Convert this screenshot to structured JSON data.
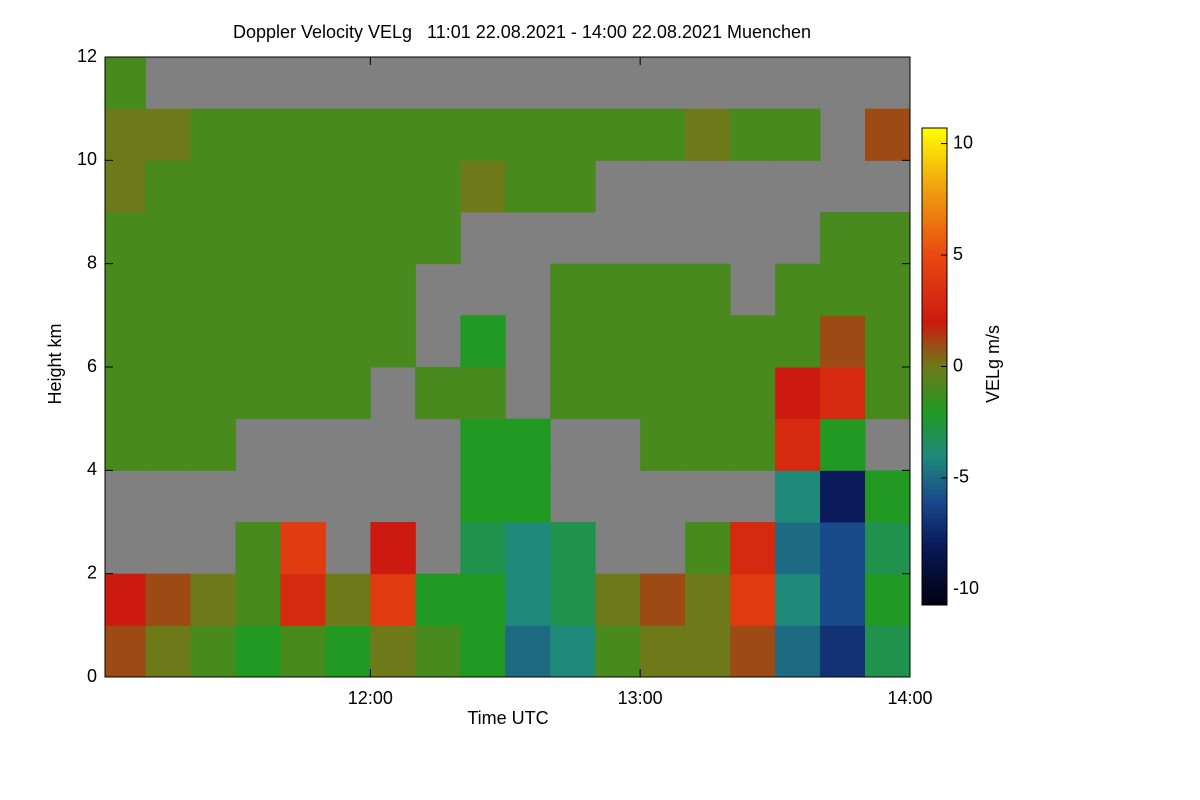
{
  "chart_data": {
    "type": "heatmap",
    "title": "Doppler Velocity VELg   11:01 22.08.2021 - 14:00 22.08.2021 Muenchen",
    "xlabel": "Time UTC",
    "ylabel": "Height km",
    "colorbar_label": "VELg m/s",
    "xlim": [
      661,
      840
    ],
    "xticks": [
      {
        "value": 720,
        "label": "12:00"
      },
      {
        "value": 780,
        "label": "13:00"
      },
      {
        "value": 840,
        "label": "14:00"
      }
    ],
    "ylim": [
      0,
      12
    ],
    "yticks": [
      0,
      2,
      4,
      6,
      8,
      10,
      12
    ],
    "clim": [
      -10.7,
      10.7
    ],
    "cticks": [
      10,
      5,
      0,
      -5,
      -10
    ],
    "nodata_color": "#808080",
    "colorscale": [
      [
        -10.7,
        "#000010"
      ],
      [
        -8,
        "#0a1a5a"
      ],
      [
        -6,
        "#1a4a8c"
      ],
      [
        -4,
        "#1f8a7a"
      ],
      [
        -2,
        "#229922"
      ],
      [
        0,
        "#6e7a1a"
      ],
      [
        2,
        "#cc1a10"
      ],
      [
        5,
        "#e84a10"
      ],
      [
        8,
        "#f0a010"
      ],
      [
        10.7,
        "#ffff00"
      ]
    ],
    "x_edges": [
      661,
      670,
      680,
      690,
      700,
      710,
      720,
      730,
      740,
      750,
      760,
      770,
      780,
      790,
      800,
      810,
      820,
      830,
      840
    ],
    "y_edges": [
      0,
      1,
      2,
      3,
      4,
      5,
      6,
      7,
      8,
      9,
      10,
      11,
      12
    ],
    "z": [
      [
        1,
        0,
        -1,
        -2,
        -1,
        -2,
        0,
        -1,
        -2,
        -5,
        -4,
        -1,
        0,
        0,
        1,
        -5,
        -7,
        -3
      ],
      [
        2,
        1,
        0,
        -1,
        3,
        0,
        4,
        -2,
        -2,
        -4,
        -3,
        0,
        1,
        0,
        4,
        -4,
        -6,
        -2
      ],
      [
        null,
        null,
        null,
        -1,
        4,
        null,
        2,
        null,
        -3,
        -4,
        -3,
        null,
        null,
        -1,
        3,
        -5,
        -6,
        -3
      ],
      [
        null,
        null,
        null,
        null,
        null,
        null,
        null,
        null,
        -2,
        -2,
        null,
        null,
        null,
        null,
        null,
        -4,
        -8,
        -2
      ],
      [
        -1,
        -1,
        -1,
        null,
        null,
        null,
        null,
        null,
        -2,
        -2,
        null,
        null,
        -1,
        -1,
        -1,
        3,
        -2,
        null
      ],
      [
        -1,
        -1,
        -1,
        -1,
        -1,
        -1,
        null,
        -1,
        -1,
        null,
        -1,
        -1,
        -1,
        -1,
        -1,
        2,
        3,
        -1
      ],
      [
        -1,
        -1,
        -1,
        -1,
        -1,
        -1,
        -1,
        null,
        -2,
        null,
        -1,
        -1,
        -1,
        -1,
        -1,
        -1,
        1,
        -1
      ],
      [
        -1,
        -1,
        -1,
        -1,
        -1,
        -1,
        -1,
        null,
        null,
        null,
        -1,
        -1,
        -1,
        -1,
        null,
        -1,
        -1,
        -1
      ],
      [
        -1,
        -1,
        -1,
        -1,
        -1,
        -1,
        -1,
        -1,
        null,
        null,
        null,
        null,
        null,
        null,
        null,
        null,
        -1,
        -1
      ],
      [
        0,
        -1,
        -1,
        -1,
        -1,
        -1,
        -1,
        -1,
        0,
        -1,
        -1,
        null,
        null,
        null,
        null,
        null,
        null,
        null
      ],
      [
        0,
        0,
        -1,
        -1,
        -1,
        -1,
        -1,
        -1,
        -1,
        -1,
        -1,
        -1,
        -1,
        0,
        -1,
        -1,
        null,
        1
      ],
      [
        -1,
        null,
        null,
        null,
        null,
        null,
        null,
        null,
        null,
        null,
        null,
        null,
        null,
        null,
        null,
        null,
        null,
        null
      ]
    ]
  }
}
